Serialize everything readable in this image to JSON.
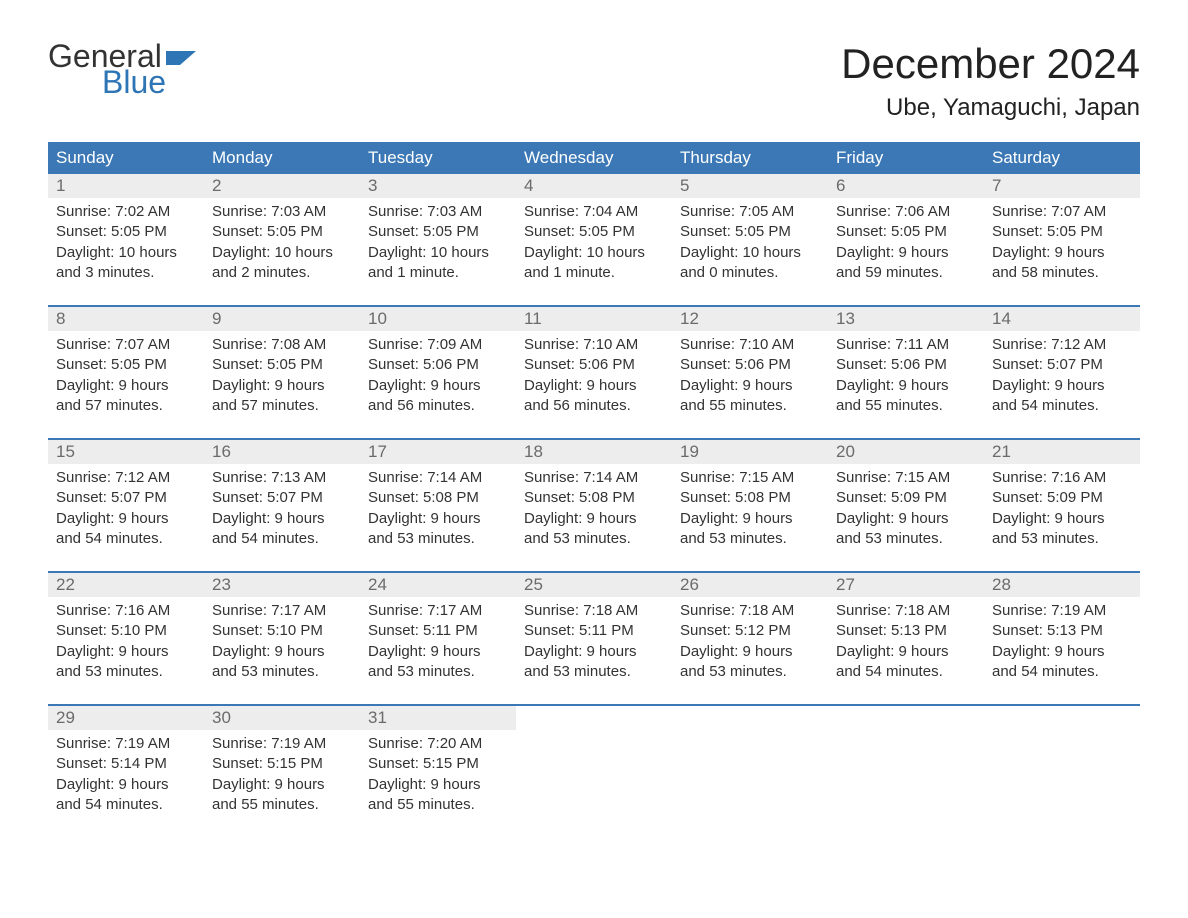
{
  "logo": {
    "text1": "General",
    "text2": "Blue",
    "flag_color": "#2e75b6",
    "text1_color": "#333333"
  },
  "title": "December 2024",
  "location": "Ube, Yamaguchi, Japan",
  "header_bg": "#3b78b5",
  "header_fg": "#ffffff",
  "daynum_bg": "#ededed",
  "daynum_fg": "#6b6b6b",
  "divider_color": "#3b78b5",
  "weekdays": [
    "Sunday",
    "Monday",
    "Tuesday",
    "Wednesday",
    "Thursday",
    "Friday",
    "Saturday"
  ],
  "weeks": [
    [
      {
        "n": "1",
        "sunrise": "Sunrise: 7:02 AM",
        "sunset": "Sunset: 5:05 PM",
        "dl1": "Daylight: 10 hours",
        "dl2": "and 3 minutes."
      },
      {
        "n": "2",
        "sunrise": "Sunrise: 7:03 AM",
        "sunset": "Sunset: 5:05 PM",
        "dl1": "Daylight: 10 hours",
        "dl2": "and 2 minutes."
      },
      {
        "n": "3",
        "sunrise": "Sunrise: 7:03 AM",
        "sunset": "Sunset: 5:05 PM",
        "dl1": "Daylight: 10 hours",
        "dl2": "and 1 minute."
      },
      {
        "n": "4",
        "sunrise": "Sunrise: 7:04 AM",
        "sunset": "Sunset: 5:05 PM",
        "dl1": "Daylight: 10 hours",
        "dl2": "and 1 minute."
      },
      {
        "n": "5",
        "sunrise": "Sunrise: 7:05 AM",
        "sunset": "Sunset: 5:05 PM",
        "dl1": "Daylight: 10 hours",
        "dl2": "and 0 minutes."
      },
      {
        "n": "6",
        "sunrise": "Sunrise: 7:06 AM",
        "sunset": "Sunset: 5:05 PM",
        "dl1": "Daylight: 9 hours",
        "dl2": "and 59 minutes."
      },
      {
        "n": "7",
        "sunrise": "Sunrise: 7:07 AM",
        "sunset": "Sunset: 5:05 PM",
        "dl1": "Daylight: 9 hours",
        "dl2": "and 58 minutes."
      }
    ],
    [
      {
        "n": "8",
        "sunrise": "Sunrise: 7:07 AM",
        "sunset": "Sunset: 5:05 PM",
        "dl1": "Daylight: 9 hours",
        "dl2": "and 57 minutes."
      },
      {
        "n": "9",
        "sunrise": "Sunrise: 7:08 AM",
        "sunset": "Sunset: 5:05 PM",
        "dl1": "Daylight: 9 hours",
        "dl2": "and 57 minutes."
      },
      {
        "n": "10",
        "sunrise": "Sunrise: 7:09 AM",
        "sunset": "Sunset: 5:06 PM",
        "dl1": "Daylight: 9 hours",
        "dl2": "and 56 minutes."
      },
      {
        "n": "11",
        "sunrise": "Sunrise: 7:10 AM",
        "sunset": "Sunset: 5:06 PM",
        "dl1": "Daylight: 9 hours",
        "dl2": "and 56 minutes."
      },
      {
        "n": "12",
        "sunrise": "Sunrise: 7:10 AM",
        "sunset": "Sunset: 5:06 PM",
        "dl1": "Daylight: 9 hours",
        "dl2": "and 55 minutes."
      },
      {
        "n": "13",
        "sunrise": "Sunrise: 7:11 AM",
        "sunset": "Sunset: 5:06 PM",
        "dl1": "Daylight: 9 hours",
        "dl2": "and 55 minutes."
      },
      {
        "n": "14",
        "sunrise": "Sunrise: 7:12 AM",
        "sunset": "Sunset: 5:07 PM",
        "dl1": "Daylight: 9 hours",
        "dl2": "and 54 minutes."
      }
    ],
    [
      {
        "n": "15",
        "sunrise": "Sunrise: 7:12 AM",
        "sunset": "Sunset: 5:07 PM",
        "dl1": "Daylight: 9 hours",
        "dl2": "and 54 minutes."
      },
      {
        "n": "16",
        "sunrise": "Sunrise: 7:13 AM",
        "sunset": "Sunset: 5:07 PM",
        "dl1": "Daylight: 9 hours",
        "dl2": "and 54 minutes."
      },
      {
        "n": "17",
        "sunrise": "Sunrise: 7:14 AM",
        "sunset": "Sunset: 5:08 PM",
        "dl1": "Daylight: 9 hours",
        "dl2": "and 53 minutes."
      },
      {
        "n": "18",
        "sunrise": "Sunrise: 7:14 AM",
        "sunset": "Sunset: 5:08 PM",
        "dl1": "Daylight: 9 hours",
        "dl2": "and 53 minutes."
      },
      {
        "n": "19",
        "sunrise": "Sunrise: 7:15 AM",
        "sunset": "Sunset: 5:08 PM",
        "dl1": "Daylight: 9 hours",
        "dl2": "and 53 minutes."
      },
      {
        "n": "20",
        "sunrise": "Sunrise: 7:15 AM",
        "sunset": "Sunset: 5:09 PM",
        "dl1": "Daylight: 9 hours",
        "dl2": "and 53 minutes."
      },
      {
        "n": "21",
        "sunrise": "Sunrise: 7:16 AM",
        "sunset": "Sunset: 5:09 PM",
        "dl1": "Daylight: 9 hours",
        "dl2": "and 53 minutes."
      }
    ],
    [
      {
        "n": "22",
        "sunrise": "Sunrise: 7:16 AM",
        "sunset": "Sunset: 5:10 PM",
        "dl1": "Daylight: 9 hours",
        "dl2": "and 53 minutes."
      },
      {
        "n": "23",
        "sunrise": "Sunrise: 7:17 AM",
        "sunset": "Sunset: 5:10 PM",
        "dl1": "Daylight: 9 hours",
        "dl2": "and 53 minutes."
      },
      {
        "n": "24",
        "sunrise": "Sunrise: 7:17 AM",
        "sunset": "Sunset: 5:11 PM",
        "dl1": "Daylight: 9 hours",
        "dl2": "and 53 minutes."
      },
      {
        "n": "25",
        "sunrise": "Sunrise: 7:18 AM",
        "sunset": "Sunset: 5:11 PM",
        "dl1": "Daylight: 9 hours",
        "dl2": "and 53 minutes."
      },
      {
        "n": "26",
        "sunrise": "Sunrise: 7:18 AM",
        "sunset": "Sunset: 5:12 PM",
        "dl1": "Daylight: 9 hours",
        "dl2": "and 53 minutes."
      },
      {
        "n": "27",
        "sunrise": "Sunrise: 7:18 AM",
        "sunset": "Sunset: 5:13 PM",
        "dl1": "Daylight: 9 hours",
        "dl2": "and 54 minutes."
      },
      {
        "n": "28",
        "sunrise": "Sunrise: 7:19 AM",
        "sunset": "Sunset: 5:13 PM",
        "dl1": "Daylight: 9 hours",
        "dl2": "and 54 minutes."
      }
    ],
    [
      {
        "n": "29",
        "sunrise": "Sunrise: 7:19 AM",
        "sunset": "Sunset: 5:14 PM",
        "dl1": "Daylight: 9 hours",
        "dl2": "and 54 minutes."
      },
      {
        "n": "30",
        "sunrise": "Sunrise: 7:19 AM",
        "sunset": "Sunset: 5:15 PM",
        "dl1": "Daylight: 9 hours",
        "dl2": "and 55 minutes."
      },
      {
        "n": "31",
        "sunrise": "Sunrise: 7:20 AM",
        "sunset": "Sunset: 5:15 PM",
        "dl1": "Daylight: 9 hours",
        "dl2": "and 55 minutes."
      },
      null,
      null,
      null,
      null
    ]
  ]
}
